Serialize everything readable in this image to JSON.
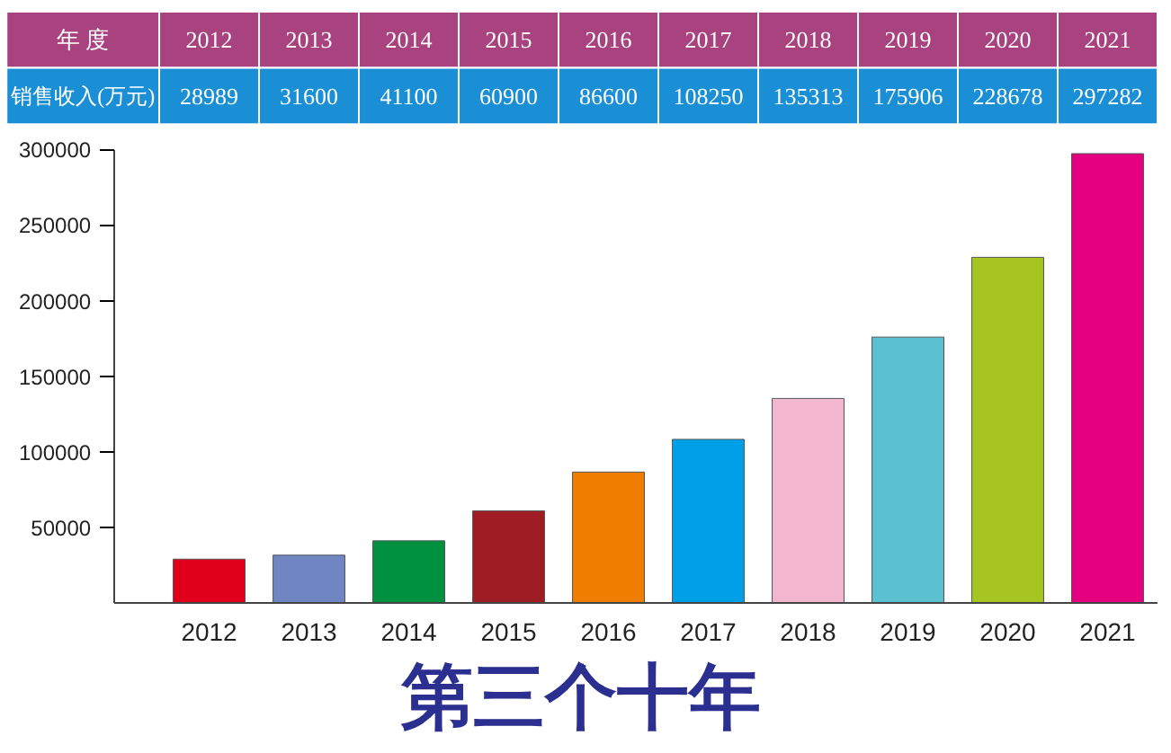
{
  "chart_data": {
    "type": "bar",
    "title": "第三个十年",
    "categories": [
      "2012",
      "2013",
      "2014",
      "2015",
      "2016",
      "2017",
      "2018",
      "2019",
      "2020",
      "2021"
    ],
    "values": [
      28989,
      31600,
      41100,
      60900,
      86600,
      108250,
      135313,
      175906,
      228678,
      297282
    ],
    "colors": [
      "#e0001b",
      "#6f86c2",
      "#009140",
      "#a01c24",
      "#ef7d00",
      "#00a0e9",
      "#f2b6cf",
      "#5bc0cf",
      "#a7c520",
      "#e4007f"
    ],
    "annotations": [
      "年 度",
      "销售收入(万元)"
    ],
    "ylim": [
      0,
      300000
    ],
    "yticks": [
      50000,
      100000,
      150000,
      200000,
      250000,
      300000
    ],
    "data_labels": true,
    "grid": false
  }
}
